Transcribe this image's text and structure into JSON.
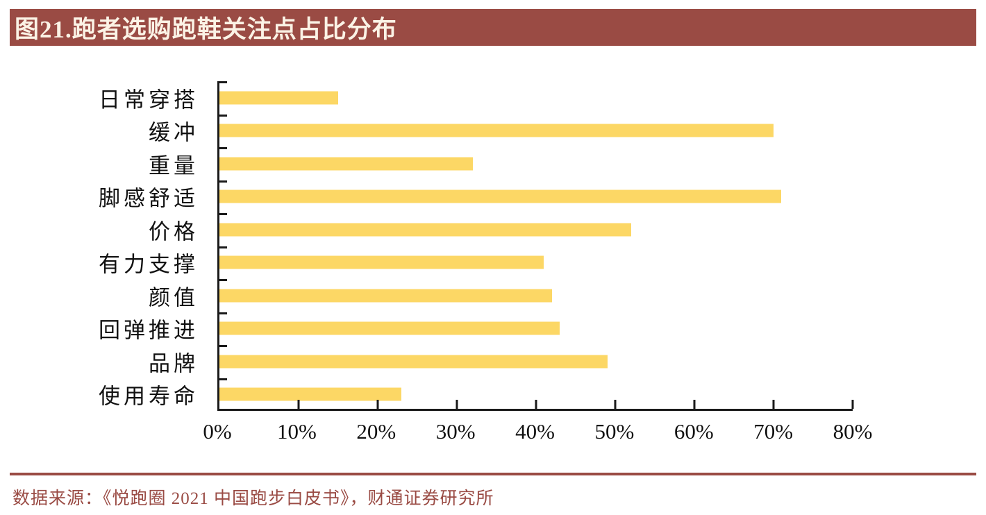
{
  "title": "图21.跑者选购跑鞋关注点占比分布",
  "source": "数据来源：《悦跑圈 2021 中国跑步白皮书》，财通证券研究所",
  "colors": {
    "title_bg": "#9A4B44",
    "title_text": "#FBF3E6",
    "bar": "#FCD765",
    "axis": "#1A1A1A",
    "source_text": "#9A4B44",
    "divider": "#9A4B44"
  },
  "chart_data": {
    "type": "bar",
    "orientation": "horizontal",
    "title": "图21.跑者选购跑鞋关注点占比分布",
    "categories": [
      "日常穿搭",
      "缓冲",
      "重量",
      "脚感舒适",
      "价格",
      "有力支撑",
      "颜值",
      "回弹推进",
      "品牌",
      "使用寿命"
    ],
    "values": [
      15,
      70,
      32,
      71,
      52,
      41,
      42,
      43,
      49,
      23
    ],
    "unit": "%",
    "xlim": [
      0,
      80
    ],
    "x_tick_labels": [
      "0%",
      "10%",
      "20%",
      "30%",
      "40%",
      "50%",
      "60%",
      "70%",
      "80%"
    ],
    "grid": false,
    "legend": false,
    "tick_style": "inside"
  }
}
